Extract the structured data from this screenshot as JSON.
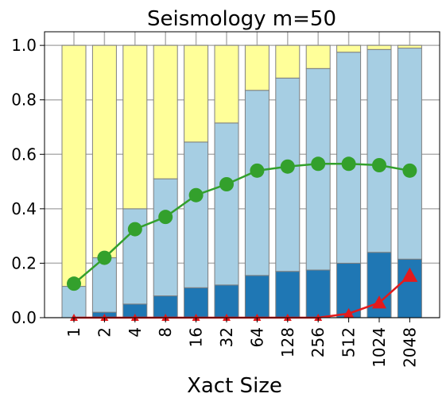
{
  "chart_data": {
    "type": "bar",
    "title": "Seismology m=50",
    "xlabel": "Xact Size",
    "ylabel": "",
    "ylim": [
      0,
      1.05
    ],
    "yticks": [
      0.0,
      0.2,
      0.4,
      0.6,
      0.8,
      1.0
    ],
    "ytick_labels": [
      "0.0",
      "0.2",
      "0.4",
      "0.6",
      "0.8",
      "1.0"
    ],
    "grid": true,
    "stacked": true,
    "categories": [
      "1",
      "2",
      "4",
      "8",
      "16",
      "32",
      "64",
      "128",
      "256",
      "512",
      "1024",
      "2048"
    ],
    "bar_series": [
      {
        "color": "#1f77b4",
        "values": [
          0.0,
          0.02,
          0.05,
          0.08,
          0.11,
          0.12,
          0.155,
          0.17,
          0.175,
          0.2,
          0.24,
          0.215
        ]
      },
      {
        "color": "#a6cee3",
        "values": [
          0.115,
          0.2,
          0.35,
          0.43,
          0.535,
          0.595,
          0.68,
          0.71,
          0.74,
          0.775,
          0.745,
          0.775
        ]
      },
      {
        "color": "#ffff99",
        "values": [
          0.885,
          0.78,
          0.6,
          0.49,
          0.355,
          0.285,
          0.165,
          0.12,
          0.085,
          0.025,
          0.015,
          0.01
        ]
      }
    ],
    "line_series": [
      {
        "color": "#33a02c",
        "marker": "circle",
        "values": [
          0.125,
          0.22,
          0.325,
          0.37,
          0.45,
          0.49,
          0.54,
          0.555,
          0.565,
          0.565,
          0.56,
          0.54
        ]
      },
      {
        "color": "#e31a1c",
        "marker": "triangle",
        "values": [
          0.0,
          0.0,
          0.0,
          0.0,
          0.0,
          0.0,
          0.0,
          0.0,
          0.0,
          0.015,
          0.055,
          0.155
        ]
      }
    ]
  }
}
